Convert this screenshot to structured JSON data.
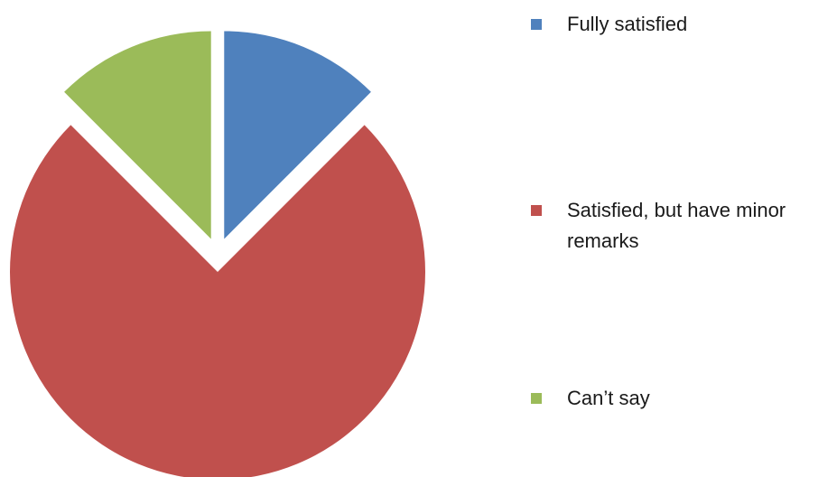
{
  "chart_data": {
    "type": "pie",
    "exploded": true,
    "start_angle_deg": 0,
    "direction": "clockwise",
    "slices": [
      {
        "label": "Fully satisfied",
        "value": 12.5,
        "color": "#4f81bd"
      },
      {
        "label": "Satisfied, but have minor remarks",
        "value": 75,
        "color": "#c0504d"
      },
      {
        "label": "Can’t say",
        "value": 12.5,
        "color": "#9bbb59"
      }
    ],
    "legend_position": "right"
  }
}
